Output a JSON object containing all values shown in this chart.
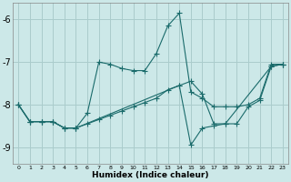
{
  "xlabel": "Humidex (Indice chaleur)",
  "ylabel": "",
  "bg_color": "#cce8e8",
  "grid_color": "#aacccc",
  "line_color": "#1a6b6b",
  "xlim": [
    -0.5,
    23.5
  ],
  "ylim": [
    -9.4,
    -5.6
  ],
  "yticks": [
    -9,
    -8,
    -7,
    -6
  ],
  "xticks": [
    0,
    1,
    2,
    3,
    4,
    5,
    6,
    7,
    8,
    9,
    10,
    11,
    12,
    13,
    14,
    15,
    16,
    17,
    18,
    19,
    20,
    21,
    22,
    23
  ],
  "series1_x": [
    0,
    1,
    2,
    3,
    4,
    5,
    6,
    7,
    8,
    9,
    10,
    11,
    12,
    13,
    14,
    15,
    16,
    17,
    18,
    19,
    20,
    21,
    22,
    23
  ],
  "series1_y": [
    -8.0,
    -8.4,
    -8.4,
    -8.4,
    -8.55,
    -8.55,
    -8.2,
    -7.0,
    -7.05,
    -7.15,
    -7.2,
    -7.2,
    -6.8,
    -6.15,
    -5.85,
    -7.7,
    -7.85,
    -8.05,
    -8.05,
    -8.05,
    -8.0,
    -7.85,
    -7.05,
    -7.05
  ],
  "series2_x": [
    0,
    1,
    2,
    3,
    4,
    5,
    6,
    7,
    8,
    9,
    10,
    11,
    12,
    13,
    14,
    15,
    16,
    17,
    18,
    19,
    20,
    21,
    22,
    23
  ],
  "series2_y": [
    -8.0,
    -8.4,
    -8.4,
    -8.4,
    -8.55,
    -8.55,
    -8.45,
    -8.35,
    -8.25,
    -8.15,
    -8.05,
    -7.95,
    -7.85,
    -7.65,
    -7.55,
    -7.45,
    -7.75,
    -8.45,
    -8.45,
    -8.45,
    -8.05,
    -7.9,
    -7.1,
    -7.05
  ],
  "series3_x": [
    0,
    1,
    2,
    3,
    4,
    5,
    14,
    15,
    16,
    17,
    18,
    22,
    23
  ],
  "series3_y": [
    -8.0,
    -8.4,
    -8.4,
    -8.4,
    -8.55,
    -8.55,
    -7.55,
    -8.95,
    -8.55,
    -8.5,
    -8.45,
    -7.1,
    -7.05
  ]
}
